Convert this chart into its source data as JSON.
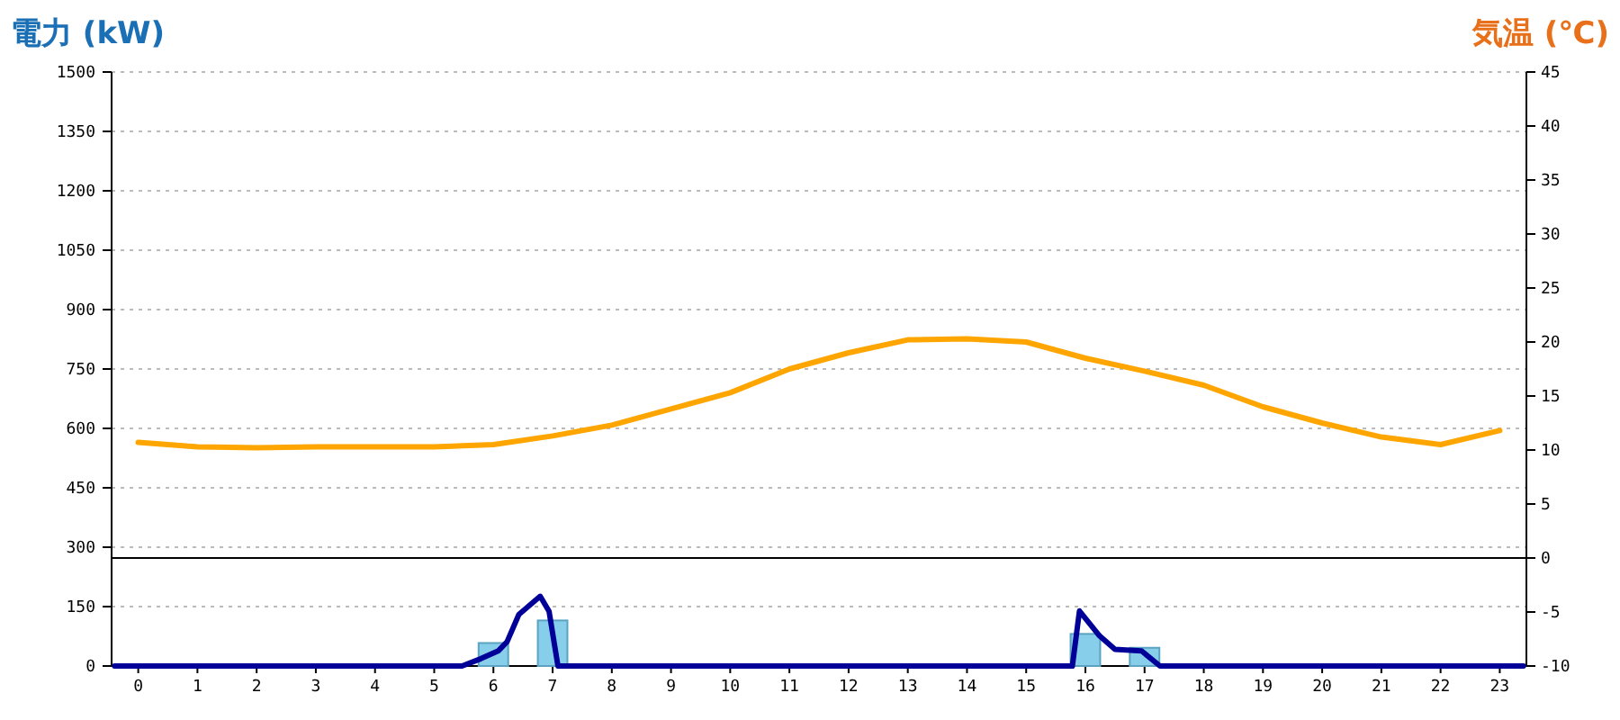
{
  "chart_data": {
    "type": "bar",
    "ylabel": "電力 (kW)",
    "y2label": "気温 (℃)",
    "x": [
      0,
      1,
      2,
      3,
      4,
      5,
      6,
      7,
      8,
      9,
      10,
      11,
      12,
      13,
      14,
      15,
      16,
      17,
      18,
      19,
      20,
      21,
      22,
      23
    ],
    "series": [
      {
        "color": "#87ceeb",
        "values": [
          0,
          0,
          0,
          0,
          0,
          0,
          58,
          115,
          0,
          0,
          0,
          0,
          0,
          0,
          0,
          0,
          81,
          46,
          0,
          0,
          0,
          0,
          0,
          0
        ]
      },
      {
        "type": "line",
        "color": "#000099",
        "x": [
          -0.4,
          5.47,
          5.78,
          6.08,
          6.23,
          6.43,
          6.79,
          6.94,
          7.09,
          15.78,
          15.9,
          16.24,
          16.5,
          16.95,
          17.26,
          23.4
        ],
        "values": [
          0,
          0,
          18,
          38,
          61,
          130,
          176,
          138,
          0,
          0,
          139,
          76,
          42,
          38,
          0,
          0
        ]
      },
      {
        "type": "line",
        "axis": "y2",
        "color": "#ffa500",
        "values": [
          10.7,
          10.3,
          10.2,
          10.3,
          10.3,
          10.3,
          10.5,
          11.3,
          12.3,
          13.8,
          15.3,
          17.5,
          19,
          20.2,
          20.3,
          20,
          18.5,
          17.3,
          16,
          14,
          12.5,
          11.2,
          10.5,
          11.8
        ]
      }
    ],
    "xlim": [
      -0.45,
      23.45
    ],
    "xticks": [
      0,
      1,
      2,
      3,
      4,
      5,
      6,
      7,
      8,
      9,
      10,
      11,
      12,
      13,
      14,
      15,
      16,
      17,
      18,
      19,
      20,
      21,
      22,
      23
    ],
    "ylim": [
      0,
      1500
    ],
    "yticks": [
      0,
      150,
      300,
      450,
      600,
      750,
      900,
      1050,
      1200,
      1350,
      1500
    ],
    "y2lim": [
      -10,
      45
    ],
    "y2ticks": [
      -10,
      -5,
      0,
      5,
      10,
      15,
      20,
      25,
      30,
      35,
      40,
      45
    ],
    "ref_lines": [
      {
        "axis": "y2",
        "value": 0,
        "color": "#000000"
      }
    ],
    "grid": "y"
  }
}
